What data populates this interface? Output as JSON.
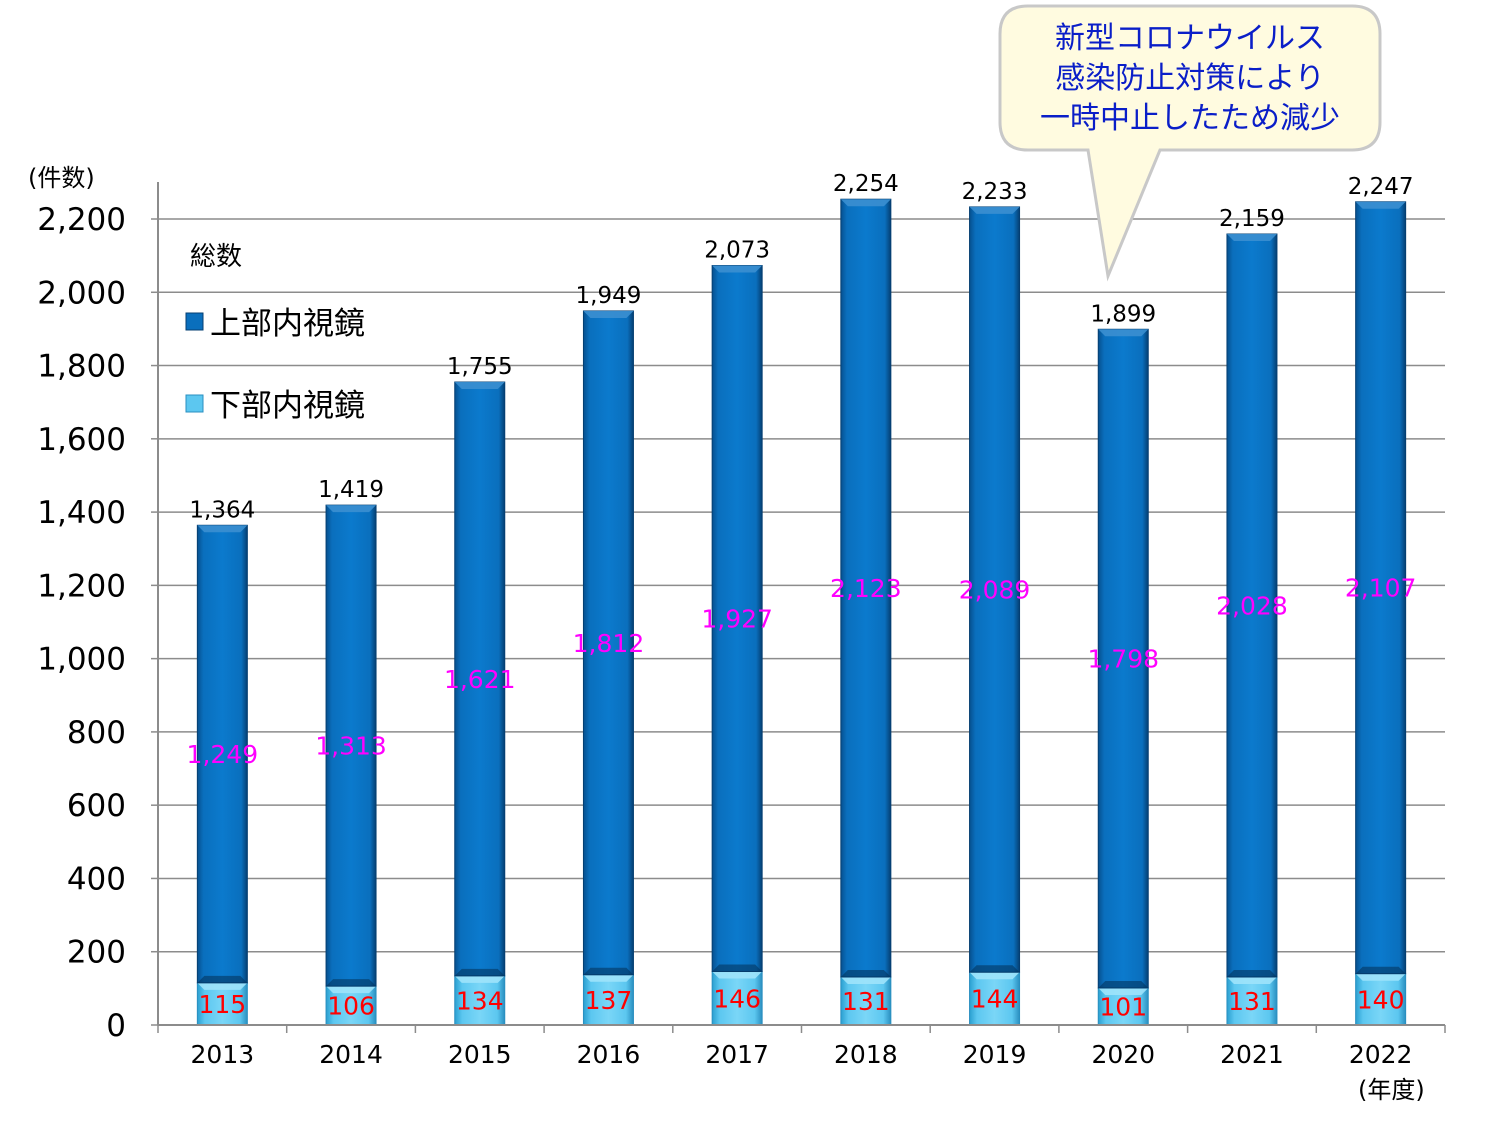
{
  "chart_data": {
    "type": "bar",
    "stacked": true,
    "categories": [
      "2013",
      "2014",
      "2015",
      "2016",
      "2017",
      "2018",
      "2019",
      "2020",
      "2021",
      "2022"
    ],
    "series": [
      {
        "name": "下部内視鏡",
        "values": [
          115,
          106,
          134,
          137,
          146,
          131,
          144,
          101,
          131,
          140
        ],
        "color": "#5cc7f0",
        "label_color": "#ff0000"
      },
      {
        "name": "上部内視鏡",
        "values": [
          1249,
          1313,
          1621,
          1812,
          1927,
          2123,
          2089,
          1798,
          2028,
          2107
        ],
        "color": "#0a6fbd",
        "label_color": "#ff00ff"
      }
    ],
    "totals": [
      1364,
      1419,
      1755,
      1949,
      2073,
      2254,
      2233,
      1899,
      2159,
      2247
    ],
    "value_labels": {
      "lower": [
        "115",
        "106",
        "134",
        "137",
        "146",
        "131",
        "144",
        "101",
        "131",
        "140"
      ],
      "upper": [
        "1,249",
        "1,313",
        "1,621",
        "1,812",
        "1,927",
        "2,123",
        "2,089",
        "1,798",
        "2,028",
        "2,107"
      ],
      "totals": [
        "1,364",
        "1,419",
        "1,755",
        "1,949",
        "2,073",
        "2,254",
        "2,233",
        "1,899",
        "2,159",
        "2,247"
      ]
    },
    "ylabel": "(件数)",
    "xlabel": "(年度)",
    "ylim": [
      0,
      2300
    ],
    "yticks": [
      0,
      200,
      400,
      600,
      800,
      1000,
      1200,
      1400,
      1600,
      1800,
      2000,
      2200
    ],
    "ytick_labels": [
      "0",
      "200",
      "400",
      "600",
      "800",
      "1,000",
      "1,200",
      "1,400",
      "1,600",
      "1,800",
      "2,000",
      "2,200"
    ],
    "grid": true,
    "legend": {
      "title": "総数",
      "placement": "top-left",
      "items": [
        "上部内視鏡",
        "下部内視鏡"
      ]
    },
    "annotation": {
      "lines": [
        "新型コロナウイルス",
        "感染防止対策により",
        "一時中止したため減少"
      ],
      "points_to": "2020",
      "fill": "#fffbe0",
      "stroke": "#c8c8c8",
      "text_color": "#0a1ec8"
    }
  }
}
